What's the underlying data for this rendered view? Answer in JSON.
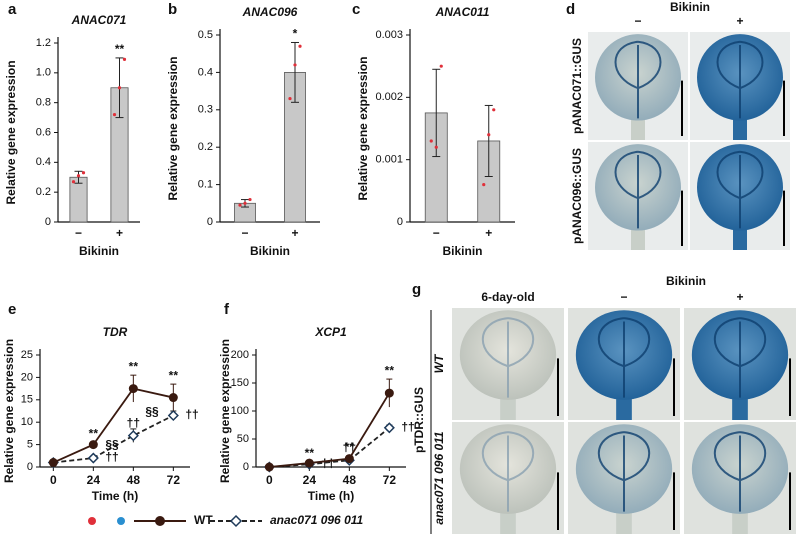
{
  "chart_data": [
    {
      "type": "bar",
      "panel": "a",
      "title": "ANAC071",
      "ylabel": "Relative gene expression",
      "xlabel": "Bikinin",
      "categories": [
        "−",
        "+"
      ],
      "values": [
        0.3,
        0.9
      ],
      "errors": [
        0.04,
        0.2
      ],
      "points": [
        [
          0.27,
          0.31,
          0.33
        ],
        [
          0.72,
          0.9,
          1.09
        ]
      ],
      "annotations": [
        null,
        "**"
      ],
      "color": "#c8c8c8",
      "point_color": "#e0303a",
      "ylim": [
        0,
        1.2
      ],
      "yticks": [
        0,
        0.2,
        0.4,
        0.6,
        0.8,
        {
          "value": 1,
          "label": "1.0"
        },
        1.2
      ]
    },
    {
      "type": "bar",
      "panel": "b",
      "title": "ANAC096",
      "ylabel": "Relative gene expression",
      "xlabel": "Bikinin",
      "categories": [
        "−",
        "+"
      ],
      "values": [
        0.05,
        0.4
      ],
      "errors": [
        0.01,
        0.08
      ],
      "points": [
        [
          0.045,
          0.05,
          0.06
        ],
        [
          0.33,
          0.42,
          0.47
        ]
      ],
      "annotations": [
        null,
        "*"
      ],
      "color": "#c8c8c8",
      "point_color": "#e0303a",
      "ylim": [
        0,
        0.5
      ],
      "yticks": [
        0,
        0.1,
        0.2,
        0.3,
        0.4,
        0.5
      ]
    },
    {
      "type": "bar",
      "panel": "c",
      "title": "ANAC011",
      "ylabel": "Relative gene expression",
      "xlabel": "Bikinin",
      "categories": [
        "−",
        "+"
      ],
      "values": [
        0.00175,
        0.0013
      ],
      "errors": [
        0.0007,
        0.00057
      ],
      "points": [
        [
          0.0013,
          0.0012,
          0.0025
        ],
        [
          0.0006,
          0.0014,
          0.0018
        ]
      ],
      "annotations": [
        null,
        null
      ],
      "color": "#c8c8c8",
      "point_color": "#e0303a",
      "ylim": [
        0,
        0.003
      ],
      "yticks": [
        0,
        0.001,
        0.002,
        0.003
      ]
    },
    {
      "type": "line",
      "panel": "e",
      "title": "TDR",
      "ylabel": "Relative gene expression",
      "xlabel": "Time (h)",
      "x": [
        0,
        24,
        48,
        72
      ],
      "xlim": [
        -8,
        82
      ],
      "xticks": [
        0,
        24,
        48,
        72
      ],
      "ylim": [
        0,
        25
      ],
      "yticks": [
        0,
        5,
        10,
        15,
        20,
        25
      ],
      "series": [
        {
          "name": "WT",
          "color": "#3a1a10",
          "marker": "circle",
          "dashed": false,
          "values": [
            1,
            5,
            17.5,
            15.5
          ],
          "errors": [
            0.3,
            0.5,
            3,
            3
          ],
          "annotations": [
            null,
            "**",
            "**",
            "**"
          ]
        },
        {
          "name": "anac071 096 011",
          "color": "#222222",
          "marker": "diamond",
          "dashed": true,
          "values": [
            1,
            2,
            7,
            11.5
          ],
          "errors": [
            0.2,
            0.3,
            1.5,
            1
          ],
          "annotations": [
            null,
            "††",
            "††",
            "††"
          ]
        }
      ],
      "between_annotations": [
        null,
        "§§",
        "§§",
        null
      ]
    },
    {
      "type": "line",
      "panel": "f",
      "title": "XCP1",
      "ylabel": "Relative gene expression",
      "xlabel": "Time (h)",
      "x": [
        0,
        24,
        48,
        72
      ],
      "xlim": [
        -8,
        82
      ],
      "xticks": [
        0,
        24,
        48,
        72
      ],
      "ylim": [
        0,
        200
      ],
      "yticks": [
        0,
        50,
        100,
        150,
        200
      ],
      "series": [
        {
          "color": "#3a1a10",
          "marker": "circle",
          "dashed": false,
          "values": [
            0,
            7,
            15,
            132
          ],
          "errors": [
            0,
            2,
            5,
            25
          ],
          "annotations": [
            null,
            "**",
            "**",
            "**"
          ]
        },
        {
          "color": "#222222",
          "marker": "diamond",
          "dashed": true,
          "values": [
            0,
            5,
            12,
            70
          ],
          "errors": [
            0,
            1,
            4,
            5
          ],
          "annotations": [
            null,
            "††",
            "††",
            "††"
          ]
        }
      ]
    }
  ],
  "images": {
    "d": {
      "label": "d",
      "header": "Bikinin",
      "columns": [
        "−",
        "+"
      ],
      "rows": [
        "pANAC071::GUS",
        "pANAC096::GUS"
      ]
    },
    "g": {
      "label": "g",
      "header": "Bikinin",
      "columns": [
        "6-day-old",
        "−",
        "+"
      ],
      "rows": [
        "WT",
        "anac071 096 011"
      ],
      "group": "pTDR::GUS"
    }
  }
}
